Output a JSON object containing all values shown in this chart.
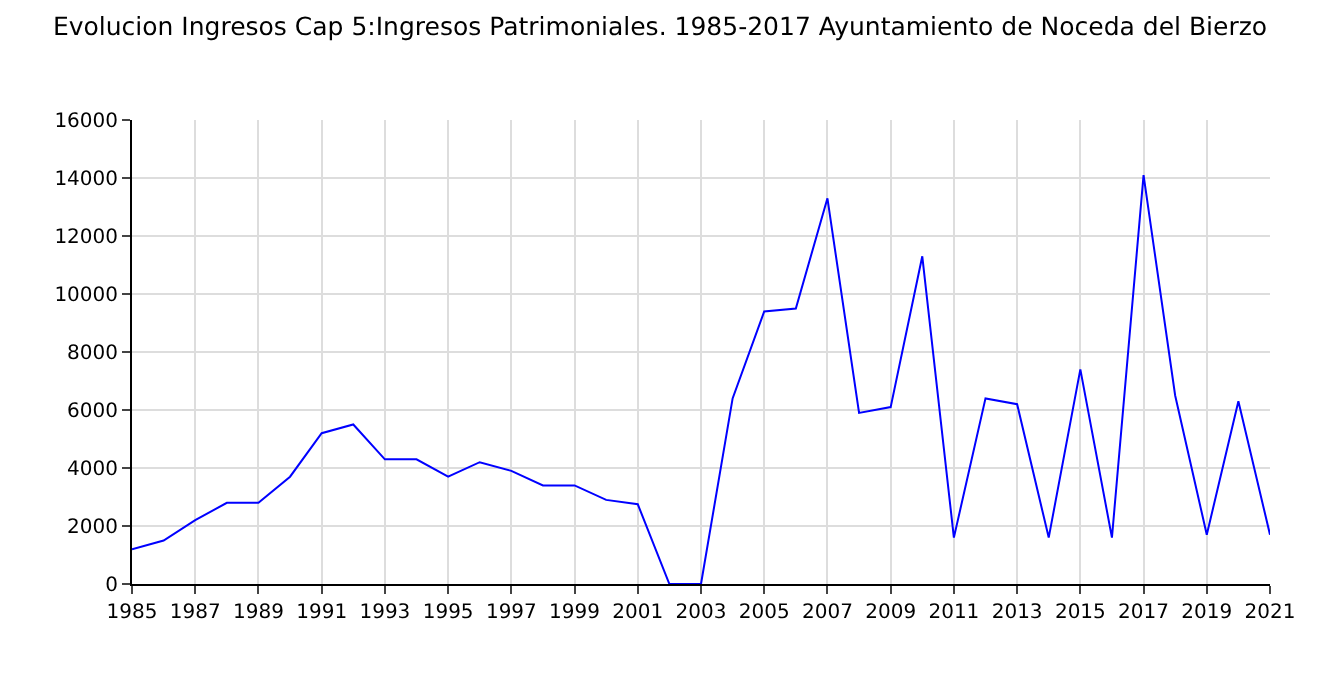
{
  "chart_data": {
    "type": "line",
    "title": "Evolucion Ingresos Cap 5:Ingresos Patrimoniales. 1985-2017 Ayuntamiento de Noceda del Bierzo",
    "x": [
      1985,
      1986,
      1987,
      1988,
      1989,
      1990,
      1991,
      1992,
      1993,
      1994,
      1995,
      1996,
      1997,
      1998,
      1999,
      2000,
      2001,
      2002,
      2003,
      2004,
      2005,
      2006,
      2007,
      2008,
      2009,
      2010,
      2011,
      2012,
      2013,
      2014,
      2015,
      2016,
      2017,
      2018,
      2019,
      2020,
      2021
    ],
    "series": [
      {
        "color": "#0000ff",
        "values": [
          1200,
          1500,
          2200,
          2800,
          2800,
          3700,
          5200,
          5500,
          4300,
          4300,
          3700,
          4200,
          3900,
          3400,
          3400,
          2900,
          2750,
          0,
          0,
          6400,
          9400,
          9500,
          13300,
          5900,
          6100,
          11300,
          1600,
          6400,
          6200,
          1600,
          7400,
          1600,
          14100,
          6500,
          1700,
          6300,
          1700
        ]
      }
    ],
    "xlim": [
      1985,
      2021
    ],
    "xticks": [
      1985,
      1987,
      1989,
      1991,
      1993,
      1995,
      1997,
      1999,
      2001,
      2003,
      2005,
      2007,
      2009,
      2011,
      2013,
      2015,
      2017,
      2019,
      2021
    ],
    "ylim": [
      0,
      16000
    ],
    "yticks": [
      0,
      2000,
      4000,
      6000,
      8000,
      10000,
      12000,
      14000,
      16000
    ],
    "grid": true,
    "marker": "none",
    "line_style": "solid"
  }
}
